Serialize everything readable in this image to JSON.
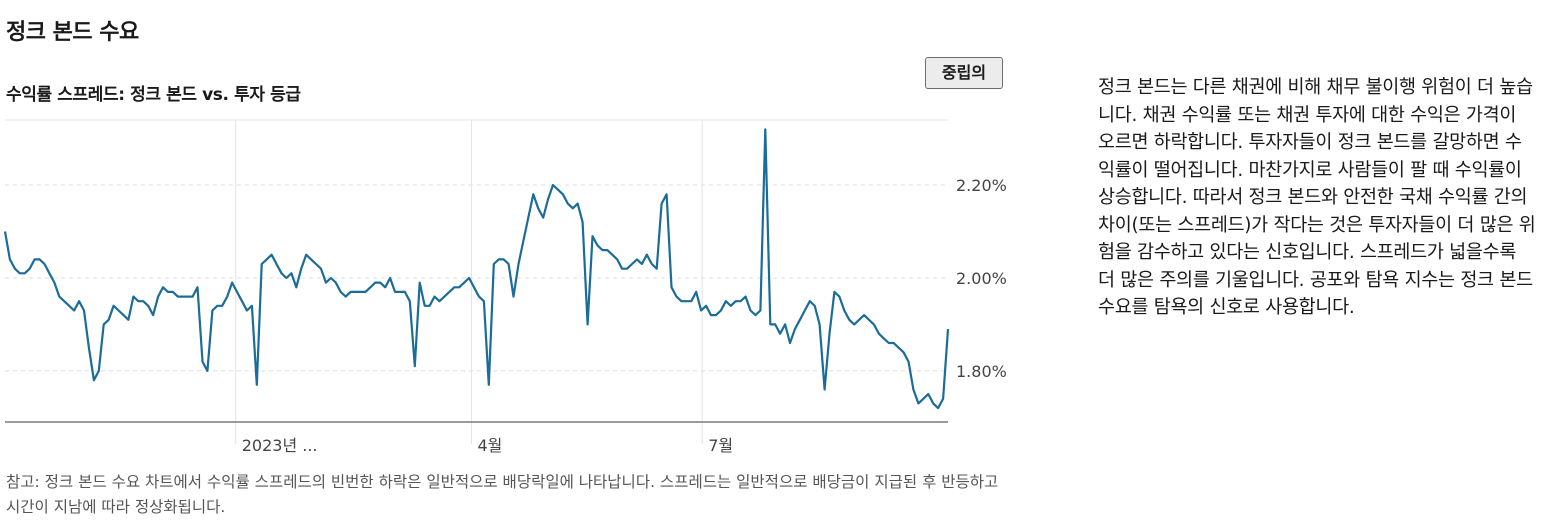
{
  "page": {
    "title": "정크 본드 수요",
    "subtitle": "수익률 스프레드: 정크 본드 vs. 투자 등급",
    "rating_badge": "중립의",
    "note": "참고: 정크 본드 수요 차트에서 수익률 스프레드의 빈번한 하락은 일반적으로 배당락일에 나타납니다. 스프레드는 일반적으로 배당금이 지급된 후 반등하고 시간이 지남에 따라 정상화됩니다.",
    "description": "정크 본드는 다른 채권에 비해 채무 불이행 위험이 더 높습니다. 채권 수익률 또는 채권 투자에 대한 수익은 가격이 오르면 하락합니다. 투자자들이 정크 본드를 갈망하면 수익률이 떨어집니다. 마찬가지로 사람들이 팔 때 수익률이 상승합니다. 따라서 정크 본드와 안전한 국채 수익률 간의 차이(또는 스프레드)가 작다는 것은 투자자들이 더 많은 위험을 감수하고 있다는 신호입니다. 스프레드가 넓을수록 더 많은 주의를 기울입니다. 공포와 탐욕 지수는 정크 본드 수요를 탐욕의 신호로 사용합니다."
  },
  "chart_data": {
    "type": "line",
    "title": "수익률 스프레드: 정크 본드 vs. 투자 등급",
    "x_tick_labels": [
      "2023년 ...",
      "4월",
      "7월"
    ],
    "y_tick_labels": [
      "2.20%",
      "2.00%",
      "1.80%"
    ],
    "y_ticks": [
      2.2,
      2.0,
      1.8
    ],
    "ylim": [
      1.69,
      2.34
    ],
    "x_range": [
      0,
      188
    ],
    "x_tick_positions": [
      46,
      93,
      139
    ],
    "line_color": "#1b6c99",
    "grid": true,
    "series": [
      {
        "values": [
          2.1,
          2.04,
          2.02,
          2.01,
          2.01,
          2.02,
          2.04,
          2.04,
          2.03,
          2.01,
          1.99,
          1.96,
          1.95,
          1.94,
          1.93,
          1.95,
          1.93,
          1.85,
          1.78,
          1.8,
          1.9,
          1.91,
          1.94,
          1.93,
          1.92,
          1.91,
          1.96,
          1.95,
          1.95,
          1.94,
          1.92,
          1.96,
          1.98,
          1.97,
          1.97,
          1.96,
          1.96,
          1.96,
          1.96,
          1.98,
          1.82,
          1.8,
          1.93,
          1.94,
          1.94,
          1.96,
          1.99,
          1.97,
          1.95,
          1.93,
          1.94,
          1.77,
          2.03,
          2.04,
          2.05,
          2.03,
          2.01,
          2.0,
          2.01,
          1.98,
          2.02,
          2.05,
          2.04,
          2.03,
          2.02,
          1.99,
          2.0,
          1.99,
          1.97,
          1.96,
          1.97,
          1.97,
          1.97,
          1.97,
          1.98,
          1.99,
          1.99,
          1.98,
          2.0,
          1.97,
          1.97,
          1.97,
          1.95,
          1.81,
          1.99,
          1.94,
          1.94,
          1.96,
          1.95,
          1.96,
          1.97,
          1.98,
          1.98,
          1.99,
          2.0,
          1.98,
          1.96,
          1.95,
          1.77,
          2.03,
          2.04,
          2.04,
          2.03,
          1.96,
          2.03,
          2.08,
          2.13,
          2.18,
          2.15,
          2.13,
          2.17,
          2.2,
          2.19,
          2.18,
          2.16,
          2.15,
          2.16,
          2.12,
          1.9,
          2.09,
          2.07,
          2.06,
          2.06,
          2.05,
          2.04,
          2.02,
          2.02,
          2.03,
          2.04,
          2.03,
          2.05,
          2.03,
          2.02,
          2.16,
          2.18,
          1.98,
          1.96,
          1.95,
          1.95,
          1.95,
          1.97,
          1.93,
          1.94,
          1.92,
          1.92,
          1.93,
          1.95,
          1.94,
          1.95,
          1.95,
          1.96,
          1.93,
          1.92,
          1.93,
          2.32,
          1.9,
          1.9,
          1.88,
          1.9,
          1.86,
          1.89,
          1.91,
          1.93,
          1.95,
          1.94,
          1.9,
          1.76,
          1.88,
          1.97,
          1.96,
          1.93,
          1.91,
          1.9,
          1.91,
          1.92,
          1.91,
          1.9,
          1.88,
          1.87,
          1.86,
          1.86,
          1.85,
          1.84,
          1.82,
          1.76,
          1.73,
          1.74,
          1.75,
          1.73,
          1.72,
          1.74,
          1.89
        ]
      }
    ]
  }
}
